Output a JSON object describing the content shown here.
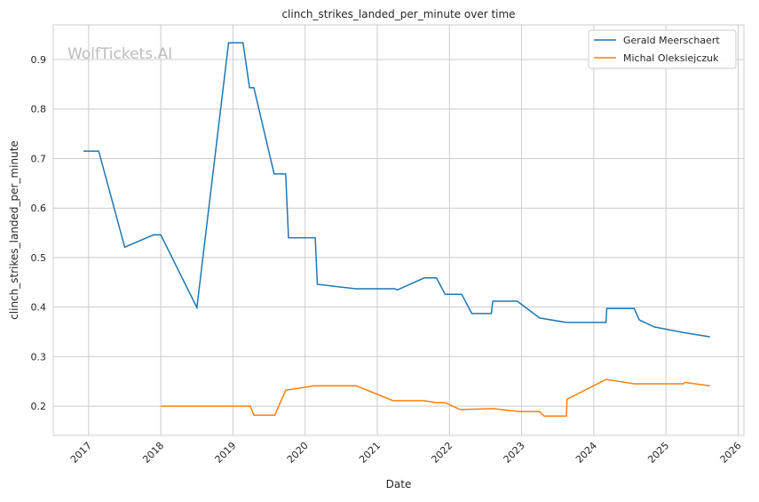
{
  "chart_data": {
    "type": "line",
    "title": "clinch_strikes_landed_per_minute over time",
    "xlabel": "Date",
    "ylabel": "clinch_strikes_landed_per_minute",
    "xlim": [
      2016.51,
      2026.08
    ],
    "ylim": [
      0.141,
      0.97
    ],
    "xticks": [
      2017,
      2018,
      2019,
      2020,
      2021,
      2022,
      2023,
      2024,
      2025,
      2026
    ],
    "yticks": [
      0.2,
      0.3,
      0.4,
      0.5,
      0.6,
      0.7,
      0.8,
      0.9
    ],
    "grid": true,
    "legend_position": "top-right",
    "watermark": "WolfTickets.AI",
    "series": [
      {
        "name": "Gerald Meerschaert",
        "color": "#1f77b4",
        "x": [
          2016.93,
          2017.14,
          2017.5,
          2017.9,
          2018.0,
          2018.5,
          2018.94,
          2019.14,
          2019.23,
          2019.29,
          2019.57,
          2019.73,
          2019.77,
          2020.14,
          2020.17,
          2020.7,
          2021.24,
          2021.28,
          2021.65,
          2021.82,
          2021.94,
          2022.17,
          2022.31,
          2022.58,
          2022.6,
          2022.94,
          2023.25,
          2023.62,
          2024.17,
          2024.18,
          2024.56,
          2024.63,
          2024.84,
          2025.23,
          2025.61
        ],
        "y": [
          0.715,
          0.715,
          0.521,
          0.546,
          0.546,
          0.399,
          0.934,
          0.934,
          0.843,
          0.843,
          0.669,
          0.669,
          0.54,
          0.54,
          0.446,
          0.437,
          0.437,
          0.435,
          0.459,
          0.459,
          0.426,
          0.426,
          0.387,
          0.387,
          0.412,
          0.412,
          0.378,
          0.369,
          0.369,
          0.397,
          0.397,
          0.374,
          0.36,
          0.349,
          0.34
        ]
      },
      {
        "name": "Michal Oleksiejczuk",
        "color": "#ff7f0e",
        "x": [
          2018.0,
          2019.24,
          2019.29,
          2019.58,
          2019.73,
          2020.12,
          2020.71,
          2021.22,
          2021.65,
          2021.82,
          2021.94,
          2022.15,
          2022.6,
          2022.97,
          2023.25,
          2023.31,
          2023.62,
          2023.63,
          2024.17,
          2024.56,
          2025.24,
          2025.26,
          2025.61
        ],
        "y": [
          0.2,
          0.2,
          0.182,
          0.182,
          0.232,
          0.241,
          0.241,
          0.211,
          0.211,
          0.207,
          0.207,
          0.193,
          0.195,
          0.189,
          0.189,
          0.18,
          0.18,
          0.214,
          0.254,
          0.245,
          0.245,
          0.248,
          0.241
        ]
      }
    ]
  }
}
